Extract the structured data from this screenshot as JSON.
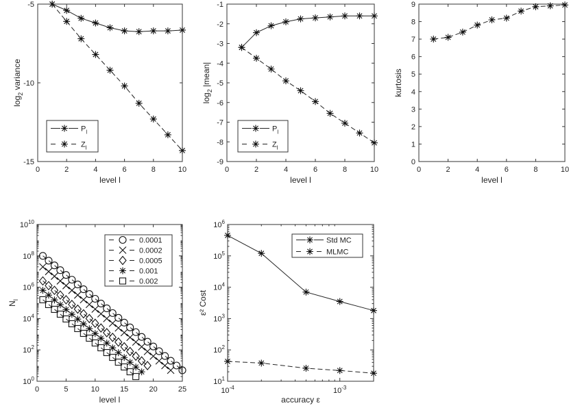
{
  "chart_data": [
    {
      "type": "line",
      "title": "",
      "xlabel": "level l",
      "ylabel": {
        "pre": "log",
        "sub": "2",
        "post": " variance"
      },
      "xscale": "linear",
      "yscale": "linear",
      "xlim": [
        0,
        10
      ],
      "ylim": [
        -15,
        -5
      ],
      "xticks": [
        0,
        2,
        4,
        6,
        8,
        10
      ],
      "yticks": [
        -15,
        -10,
        -5
      ],
      "legend_position": "bottom-left",
      "x": [
        1,
        2,
        3,
        4,
        5,
        6,
        7,
        8,
        9,
        10
      ],
      "series": [
        {
          "name": {
            "main": "P",
            "sub": "l"
          },
          "style": "solid",
          "marker": "star",
          "values": [
            -5.0,
            -5.4,
            -5.9,
            -6.2,
            -6.5,
            -6.7,
            -6.75,
            -6.7,
            -6.7,
            -6.65
          ]
        },
        {
          "name": {
            "main": "Z",
            "sub": "l"
          },
          "style": "dashed",
          "marker": "star",
          "values": [
            -5.0,
            -6.1,
            -7.2,
            -8.2,
            -9.2,
            -10.2,
            -11.3,
            -12.3,
            -13.3,
            -14.3
          ]
        }
      ]
    },
    {
      "type": "line",
      "title": "",
      "xlabel": "level l",
      "ylabel": {
        "pre": "log",
        "sub": "2",
        "post": " |mean|"
      },
      "xscale": "linear",
      "yscale": "linear",
      "xlim": [
        0,
        10
      ],
      "ylim": [
        -9,
        -1
      ],
      "xticks": [
        0,
        2,
        4,
        6,
        8,
        10
      ],
      "yticks": [
        -9,
        -8,
        -7,
        -6,
        -5,
        -4,
        -3,
        -2,
        -1
      ],
      "legend_position": "bottom-left",
      "x": [
        1,
        2,
        3,
        4,
        5,
        6,
        7,
        8,
        9,
        10
      ],
      "series": [
        {
          "name": {
            "main": "P",
            "sub": "l"
          },
          "style": "solid",
          "marker": "star",
          "values": [
            -3.2,
            -2.45,
            -2.1,
            -1.9,
            -1.75,
            -1.7,
            -1.65,
            -1.6,
            -1.6,
            -1.6
          ]
        },
        {
          "name": {
            "main": "Z",
            "sub": "l"
          },
          "style": "dashed",
          "marker": "star",
          "values": [
            -3.2,
            -3.75,
            -4.3,
            -4.9,
            -5.4,
            -5.95,
            -6.55,
            -7.05,
            -7.55,
            -8.05
          ]
        }
      ]
    },
    {
      "type": "line",
      "title": "",
      "xlabel": "level l",
      "ylabel": {
        "pre": "kurtosis",
        "sub": "",
        "post": ""
      },
      "xscale": "linear",
      "yscale": "linear",
      "xlim": [
        0,
        10
      ],
      "ylim": [
        0,
        9
      ],
      "xticks": [
        0,
        2,
        4,
        6,
        8,
        10
      ],
      "yticks": [
        0,
        1,
        2,
        3,
        4,
        5,
        6,
        7,
        8,
        9
      ],
      "legend_position": "none",
      "x": [
        1,
        2,
        3,
        4,
        5,
        6,
        7,
        8,
        9,
        10
      ],
      "series": [
        {
          "name": null,
          "style": "dashed",
          "marker": "star",
          "values": [
            7.0,
            7.1,
            7.4,
            7.8,
            8.1,
            8.2,
            8.6,
            8.85,
            8.9,
            8.95
          ]
        }
      ]
    },
    {
      "type": "line",
      "title": "",
      "xlabel": "level l",
      "ylabel": {
        "pre": "N",
        "sub": "l",
        "post": ""
      },
      "xscale": "linear",
      "yscale": "log",
      "xlim": [
        0,
        25
      ],
      "ylim": [
        1,
        10000000000
      ],
      "xticks": [
        0,
        5,
        10,
        15,
        20,
        25
      ],
      "yticks_exp": [
        0,
        2,
        4,
        6,
        8,
        10
      ],
      "legend_position": "top-right",
      "series": [
        {
          "name": {
            "main": "0.0001",
            "sub": ""
          },
          "style": "dashed",
          "marker": "circle",
          "x_start": 1,
          "x_end": 25,
          "log10_start": 8.0,
          "log10_end": 0.7
        },
        {
          "name": {
            "main": "0.0002",
            "sub": ""
          },
          "style": "dashed",
          "marker": "cross",
          "x_start": 1,
          "x_end": 23,
          "log10_start": 7.3,
          "log10_end": 0.7
        },
        {
          "name": {
            "main": "0.0005",
            "sub": ""
          },
          "style": "dashed",
          "marker": "diamond",
          "x_start": 1,
          "x_end": 19,
          "log10_start": 6.4,
          "log10_end": 1.0
        },
        {
          "name": {
            "main": "0.001",
            "sub": ""
          },
          "style": "dashed",
          "marker": "star",
          "x_start": 1,
          "x_end": 18,
          "log10_start": 5.8,
          "log10_end": 0.6
        },
        {
          "name": {
            "main": "0.002",
            "sub": ""
          },
          "style": "dashed",
          "marker": "square",
          "x_start": 1,
          "x_end": 17,
          "log10_start": 5.2,
          "log10_end": 0.3
        }
      ]
    },
    {
      "type": "line",
      "title": "",
      "xlabel": "accuracy ε",
      "ylabel": {
        "pre": "ε² Cost",
        "sub": "",
        "post": ""
      },
      "xscale": "log",
      "yscale": "log",
      "xlim": [
        0.0001,
        0.002
      ],
      "ylim": [
        10,
        1000000
      ],
      "xticks_exp": [
        -4,
        -3
      ],
      "yticks_exp": [
        1,
        2,
        3,
        4,
        5,
        6
      ],
      "legend_position": "top-right",
      "x": [
        0.0001,
        0.0002,
        0.0005,
        0.001,
        0.002
      ],
      "series": [
        {
          "name": {
            "main": "Std MC",
            "sub": ""
          },
          "style": "solid",
          "marker": "star",
          "values": [
            450000,
            120000,
            7000,
            3500,
            1800
          ]
        },
        {
          "name": {
            "main": "MLMC",
            "sub": ""
          },
          "style": "dashed",
          "marker": "star",
          "values": [
            43,
            38,
            26,
            22,
            18
          ]
        }
      ]
    }
  ]
}
